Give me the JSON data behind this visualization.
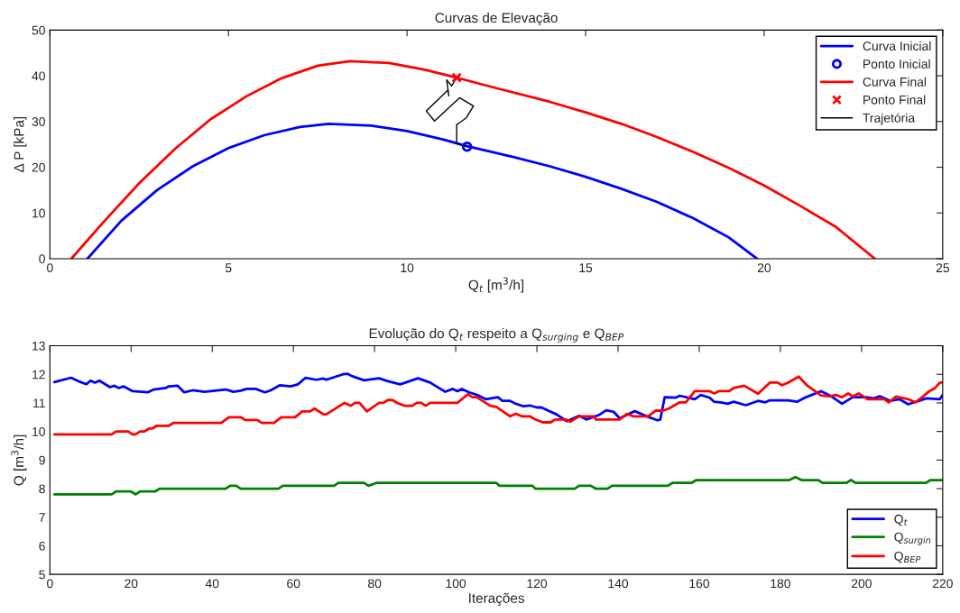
{
  "chart_data": [
    {
      "type": "line",
      "title": "Curvas de Elevação",
      "xlabel": "Q$_{t}$ [m$^{3}$/h]",
      "ylabel": "Δ P [kPa]",
      "xlim": [
        0,
        25
      ],
      "xticks": [
        0,
        5,
        10,
        15,
        20,
        25
      ],
      "ylim": [
        0,
        50
      ],
      "yticks": [
        0,
        10,
        20,
        30,
        40,
        50
      ],
      "legend": "top right",
      "grid": false,
      "series": [
        {
          "name": "Curva Inicial",
          "type": "line",
          "color": "#0000ff",
          "marker": "none",
          "x": [
            1.05,
            2,
            3,
            4,
            5,
            6,
            7,
            7.8,
            9,
            10,
            11,
            11.68,
            13,
            14,
            15,
            16,
            17,
            18,
            19,
            19.8
          ],
          "values": [
            0,
            8.3,
            15,
            20.2,
            24.2,
            27,
            28.8,
            29.5,
            29.1,
            27.9,
            26.1,
            24.6,
            22.2,
            20.2,
            17.9,
            15.3,
            12.4,
            8.9,
            4.7,
            0
          ]
        },
        {
          "name": "Ponto Inicial",
          "type": "scatter",
          "color": "#0000ff",
          "marker": "circle",
          "x": [
            11.68
          ],
          "values": [
            24.5
          ]
        },
        {
          "name": "Curva Final",
          "type": "line",
          "color": "#ff0000",
          "marker": "none",
          "x": [
            0.6,
            1.5,
            2.5,
            3.5,
            4.5,
            5.5,
            6.5,
            7.5,
            8.4,
            9.5,
            10.5,
            11.39,
            12.5,
            14,
            15,
            16,
            17,
            18,
            19,
            20,
            21,
            22,
            23.1
          ],
          "values": [
            0,
            8,
            16.5,
            24,
            30.5,
            35.5,
            39.5,
            42.2,
            43.2,
            42.8,
            41.3,
            39.6,
            37.3,
            34.3,
            32,
            29.5,
            26.6,
            23.4,
            19.9,
            16,
            11.6,
            7,
            0
          ]
        },
        {
          "name": "Ponto Final",
          "type": "scatter",
          "color": "#ff0000",
          "marker": "cross",
          "x": [
            11.39
          ],
          "values": [
            39.6
          ]
        },
        {
          "name": "Trajetória",
          "type": "line",
          "color": "#000000",
          "marker": "none",
          "x": [
            11.68,
            11.39,
            11.39,
            11.66,
            11.86,
            11.47,
            10.77,
            10.54,
            11.15,
            11.17,
            11.11,
            11.25,
            11.39
          ],
          "values": [
            24.5,
            25.2,
            29.3,
            30.8,
            33.4,
            35.2,
            30.1,
            32.3,
            36.9,
            35.6,
            39.1,
            37.8,
            39.6
          ]
        }
      ]
    },
    {
      "type": "line",
      "title": "Evolução do Q$_{t}$ respeito a Q$_{surging}$ e Q$_{BEP}$",
      "xlabel": "Iterações",
      "ylabel": "Q [m$^{3}$/h]",
      "xlim": [
        0,
        220
      ],
      "xticks": [
        0,
        20,
        40,
        60,
        80,
        100,
        120,
        140,
        160,
        180,
        200,
        220
      ],
      "ylim": [
        5,
        13
      ],
      "yticks": [
        5,
        6,
        7,
        8,
        9,
        10,
        11,
        12,
        13
      ],
      "legend": "bottom right",
      "grid": false,
      "series": [
        {
          "name": "Q$_{t}$",
          "color": "#0000ff",
          "x": [
            1.1,
            5.2,
            7.0,
            9.0,
            10.0,
            11.1,
            12.2,
            14.8,
            15.9,
            17.0,
            18.1,
            20.4,
            24.1,
            25.6,
            28.5,
            29.3,
            31.5,
            33.1,
            35.2,
            38.1,
            43.3,
            45.2,
            47.0,
            48.5,
            50.7,
            53.0,
            54.4,
            56.7,
            59.3,
            61.1,
            63.0,
            65.6,
            67.4,
            68.1,
            72.2,
            73.3,
            74.4,
            77.4,
            81.1,
            83.3,
            86.3,
            90.7,
            93.7,
            97.4,
            99.3,
            100.4,
            101.5,
            103.3,
            105.6,
            107.4,
            110.4,
            111.5,
            113.4,
            114.8,
            116.7,
            118.2,
            120.0,
            121.1,
            124.8,
            127.4,
            130.4,
            132.2,
            135.2,
            137.1,
            138.9,
            140.4,
            144.1,
            147.1,
            149.7,
            150.4,
            151.5,
            154.1,
            155.2,
            158.9,
            160.4,
            162.6,
            163.7,
            165.6,
            167.0,
            168.5,
            171.5,
            174.5,
            176.3,
            177.4,
            181.9,
            184.1,
            186.3,
            190.0,
            192.2,
            195.2,
            197.8,
            201.1,
            203.0,
            204.5,
            207.1,
            209.3,
            211.5,
            213.0,
            216.0,
            219.3,
            220
          ],
          "values": [
            11.73,
            11.88,
            11.76,
            11.65,
            11.78,
            11.71,
            11.78,
            11.55,
            11.6,
            11.52,
            11.58,
            11.41,
            11.37,
            11.47,
            11.52,
            11.58,
            11.6,
            11.37,
            11.44,
            11.39,
            11.47,
            11.39,
            11.43,
            11.49,
            11.49,
            11.37,
            11.44,
            11.62,
            11.58,
            11.65,
            11.88,
            11.81,
            11.85,
            11.81,
            12.0,
            12.02,
            11.94,
            11.79,
            11.86,
            11.76,
            11.65,
            11.86,
            11.71,
            11.39,
            11.49,
            11.41,
            11.49,
            11.37,
            11.26,
            11.13,
            11.2,
            11.07,
            11.07,
            10.97,
            10.88,
            10.91,
            10.84,
            10.84,
            10.6,
            10.36,
            10.55,
            10.42,
            10.57,
            10.74,
            10.69,
            10.46,
            10.71,
            10.53,
            10.39,
            10.42,
            11.2,
            11.18,
            11.25,
            11.13,
            11.28,
            11.18,
            11.04,
            11.01,
            10.97,
            11.04,
            10.92,
            11.07,
            11.02,
            11.09,
            11.09,
            11.04,
            11.2,
            11.41,
            11.26,
            10.97,
            11.2,
            11.2,
            11.16,
            11.23,
            11.07,
            11.13,
            10.95,
            11.02,
            11.16,
            11.13,
            11.28
          ]
        },
        {
          "name": "Q$_{surgin}$",
          "color": "#008000",
          "x": [
            1.1,
            15.2,
            16.3,
            20.0,
            21.1,
            22.2,
            25.9,
            27.0,
            43.3,
            44.4,
            45.9,
            47.0,
            56.3,
            57.4,
            70.0,
            71.1,
            77.4,
            78.5,
            80.4,
            110.0,
            110.8,
            118.9,
            119.6,
            129.3,
            130.4,
            133.3,
            134.5,
            137.4,
            138.5,
            152.2,
            153.4,
            158.1,
            159.3,
            182.2,
            183.7,
            185.2,
            189.3,
            190.4,
            196.3,
            197.4,
            198.5,
            215.9,
            217.0,
            220
          ],
          "values": [
            7.8,
            7.8,
            7.9,
            7.9,
            7.8,
            7.9,
            7.9,
            8.0,
            8.0,
            8.1,
            8.1,
            8.0,
            8.0,
            8.1,
            8.1,
            8.2,
            8.2,
            8.1,
            8.2,
            8.2,
            8.1,
            8.1,
            8.0,
            8.0,
            8.1,
            8.1,
            8.0,
            8.0,
            8.1,
            8.1,
            8.2,
            8.2,
            8.3,
            8.3,
            8.4,
            8.3,
            8.3,
            8.2,
            8.2,
            8.3,
            8.2,
            8.2,
            8.3,
            8.3
          ]
        },
        {
          "name": "Q$_{BEP}$",
          "color": "#ff0000",
          "x": [
            1.1,
            15.2,
            16.3,
            19.3,
            20.4,
            21.1,
            22.2,
            23.3,
            24.4,
            25.2,
            26.3,
            29.3,
            30.4,
            42.2,
            44.1,
            47.0,
            48.1,
            51.1,
            52.2,
            55.2,
            57.0,
            60.4,
            62.2,
            64.1,
            65.2,
            67.4,
            68.1,
            72.6,
            74.1,
            75.2,
            76.3,
            78.1,
            81.1,
            82.2,
            83.3,
            84.4,
            85.6,
            87.4,
            89.3,
            90.4,
            91.5,
            92.6,
            93.7,
            100.4,
            103.0,
            104.1,
            105.2,
            108.5,
            110.0,
            113.4,
            114.8,
            116.3,
            118.2,
            119.6,
            121.5,
            123.4,
            124.5,
            127.1,
            128.2,
            130.4,
            134.1,
            134.5,
            140.4,
            142.2,
            143.7,
            147.4,
            149.3,
            151.1,
            152.6,
            155.2,
            156.7,
            158.9,
            162.6,
            163.7,
            164.8,
            167.4,
            168.5,
            171.1,
            174.5,
            177.4,
            179.3,
            180.4,
            181.9,
            184.5,
            186.7,
            190.0,
            192.2,
            193.7,
            195.2,
            196.7,
            197.8,
            199.3,
            201.5,
            205.6,
            206.7,
            208.5,
            211.5,
            213.3,
            215.2,
            216.7,
            218.1,
            219.3,
            220
          ],
          "values": [
            9.9,
            9.9,
            10.0,
            10.0,
            9.9,
            9.9,
            10.0,
            10.0,
            10.1,
            10.1,
            10.2,
            10.2,
            10.3,
            10.3,
            10.5,
            10.5,
            10.4,
            10.4,
            10.3,
            10.3,
            10.5,
            10.5,
            10.7,
            10.7,
            10.8,
            10.6,
            10.6,
            11.0,
            10.9,
            11.0,
            11.0,
            10.7,
            11.0,
            11.0,
            11.1,
            11.1,
            11.0,
            10.9,
            10.9,
            11.0,
            11.0,
            10.9,
            11.0,
            11.0,
            11.3,
            11.2,
            11.2,
            10.9,
            10.86,
            10.53,
            10.62,
            10.53,
            10.53,
            10.42,
            10.32,
            10.32,
            10.42,
            10.42,
            10.34,
            10.53,
            10.53,
            10.42,
            10.42,
            10.62,
            10.53,
            10.53,
            10.73,
            10.73,
            10.81,
            11.02,
            11.02,
            11.41,
            11.41,
            11.33,
            11.41,
            11.41,
            11.52,
            11.6,
            11.32,
            11.71,
            11.71,
            11.62,
            11.71,
            11.92,
            11.6,
            11.26,
            11.23,
            11.28,
            11.2,
            11.33,
            11.23,
            11.33,
            11.13,
            11.13,
            11.02,
            11.22,
            11.13,
            11.02,
            11.23,
            11.41,
            11.52,
            11.71,
            11.71
          ]
        }
      ]
    }
  ]
}
